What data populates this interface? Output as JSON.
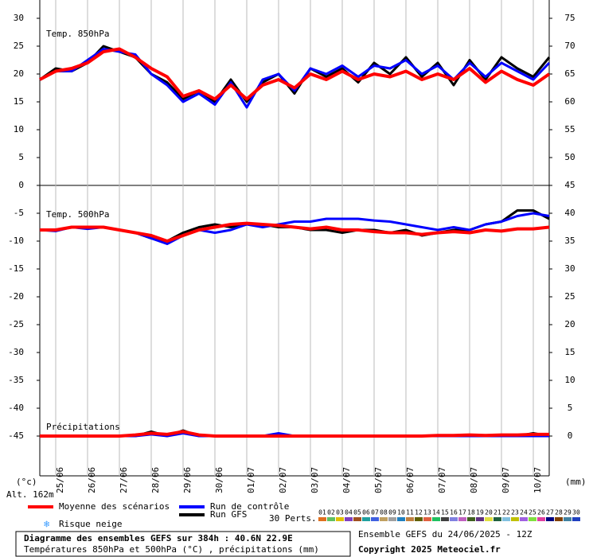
{
  "chart_data": {
    "type": "line",
    "x": [
      0,
      12,
      24,
      36,
      48,
      60,
      72,
      84,
      96,
      108,
      120,
      132,
      144,
      156,
      168,
      180,
      192,
      204,
      216,
      228,
      240,
      252,
      264,
      276,
      288,
      300,
      312,
      324,
      336,
      348,
      360,
      372,
      384
    ],
    "xlim": [
      0,
      384
    ],
    "xticks": [
      {
        "value": 12,
        "label": "25/06"
      },
      {
        "value": 36,
        "label": "26/06"
      },
      {
        "value": 60,
        "label": "27/06"
      },
      {
        "value": 84,
        "label": "28/06"
      },
      {
        "value": 108,
        "label": "29/06"
      },
      {
        "value": 132,
        "label": "30/06"
      },
      {
        "value": 156,
        "label": "01/07"
      },
      {
        "value": 180,
        "label": "02/07"
      },
      {
        "value": 204,
        "label": "03/07"
      },
      {
        "value": 228,
        "label": "04/07"
      },
      {
        "value": 252,
        "label": "05/07"
      },
      {
        "value": 276,
        "label": "06/07"
      },
      {
        "value": 300,
        "label": "07/07"
      },
      {
        "value": 324,
        "label": "08/07"
      },
      {
        "value": 348,
        "label": "09/07"
      },
      {
        "value": 372,
        "label": "10/07"
      }
    ],
    "ylim": [
      -52,
      33
    ],
    "yticks": [
      30,
      25,
      20,
      15,
      10,
      5,
      0,
      -5,
      -10,
      -15,
      -20,
      -25,
      -30,
      -35,
      -40,
      -45
    ],
    "y2lim": [
      -7,
      78
    ],
    "y2ticks": [
      75,
      70,
      65,
      60,
      55,
      50,
      45,
      40,
      35,
      30,
      25,
      20,
      15,
      10,
      5,
      0
    ],
    "grid": true,
    "ylabel": "(°c)",
    "y2label": "(mm)",
    "altitude": "Alt. 162m",
    "legend": [
      {
        "name": "Moyenne des scénarios",
        "color": "#ff0000",
        "width": 4
      },
      {
        "name": "Run de contrôle",
        "color": "#0000ff",
        "width": 3
      },
      {
        "name": "Run GFS",
        "color": "#000000",
        "width": 3
      }
    ],
    "snow": "Risque neige",
    "perturbations_title": "30 Perts.",
    "perturbations": [
      {
        "name": "01",
        "color": "#e07020"
      },
      {
        "name": "02",
        "color": "#60c060"
      },
      {
        "name": "03",
        "color": "#e0c000"
      },
      {
        "name": "04",
        "color": "#8040c0"
      },
      {
        "name": "05",
        "color": "#a05020"
      },
      {
        "name": "06",
        "color": "#20a0a0"
      },
      {
        "name": "07",
        "color": "#4060e0"
      },
      {
        "name": "08",
        "color": "#c0a060"
      },
      {
        "name": "09",
        "color": "#a0a0a0"
      },
      {
        "name": "10",
        "color": "#2080c0"
      },
      {
        "name": "11",
        "color": "#c08040"
      },
      {
        "name": "12",
        "color": "#606000"
      },
      {
        "name": "13",
        "color": "#e06040"
      },
      {
        "name": "14",
        "color": "#20c060"
      },
      {
        "name": "15",
        "color": "#404040"
      },
      {
        "name": "16",
        "color": "#8080e0"
      },
      {
        "name": "17",
        "color": "#c060c0"
      },
      {
        "name": "18",
        "color": "#406020"
      },
      {
        "name": "19",
        "color": "#603080"
      },
      {
        "name": "20",
        "color": "#e0e040"
      },
      {
        "name": "21",
        "color": "#206040"
      },
      {
        "name": "22",
        "color": "#80c0e0"
      },
      {
        "name": "23",
        "color": "#c0c000"
      },
      {
        "name": "24",
        "color": "#a060e0"
      },
      {
        "name": "25",
        "color": "#80e040"
      },
      {
        "name": "26",
        "color": "#e040a0"
      },
      {
        "name": "27",
        "color": "#000080"
      },
      {
        "name": "28",
        "color": "#804000"
      },
      {
        "name": "29",
        "color": "#4080a0"
      },
      {
        "name": "30",
        "color": "#2040c0"
      }
    ],
    "panels": [
      {
        "label": "Temp. 850hPa",
        "axis": "y",
        "values": [
          [
            19,
            20.5,
            21,
            22,
            24,
            24.5,
            23,
            21,
            19.5,
            16,
            17,
            15.5,
            18,
            15.5,
            18,
            19,
            17.5,
            20,
            19,
            20.5,
            19,
            20,
            19.5,
            20.5,
            19,
            20,
            19,
            21,
            18.5,
            20.5,
            19,
            18,
            20
          ],
          [
            19,
            20.5,
            20.5,
            22.5,
            24.5,
            24,
            23.5,
            20,
            18,
            15,
            16.5,
            14.5,
            18.5,
            14,
            19,
            20,
            17,
            21,
            20,
            21.5,
            19.5,
            21.5,
            21,
            22.5,
            20,
            21.5,
            19,
            22,
            19.5,
            22,
            20.5,
            19,
            22
          ],
          [
            19,
            21,
            20.5,
            22,
            25,
            24,
            23,
            20,
            18.5,
            15.5,
            17,
            15,
            19,
            15,
            18.5,
            20,
            16.5,
            21,
            19.5,
            21,
            18.5,
            22,
            20,
            23,
            19.5,
            22,
            18,
            22.5,
            19,
            23,
            21,
            19.5,
            23
          ]
        ]
      },
      {
        "label": "Temp. 500hPa",
        "axis": "y",
        "values": [
          [
            -8,
            -8,
            -7.5,
            -7.5,
            -7.5,
            -8,
            -8.5,
            -9,
            -10,
            -9,
            -8,
            -7.5,
            -7,
            -6.8,
            -7,
            -7.2,
            -7.5,
            -7.8,
            -7.5,
            -8,
            -8,
            -8.3,
            -8.5,
            -8.5,
            -8.8,
            -8.5,
            -8.3,
            -8.5,
            -8,
            -8.2,
            -7.8,
            -7.8,
            -7.5
          ],
          [
            -8,
            -8.2,
            -7.5,
            -7.8,
            -7.5,
            -8,
            -8.5,
            -9.5,
            -10.5,
            -9,
            -8,
            -8.5,
            -8,
            -7,
            -7.5,
            -7,
            -6.5,
            -6.5,
            -6,
            -6,
            -6,
            -6.3,
            -6.5,
            -7,
            -7.5,
            -8,
            -7.5,
            -8,
            -7,
            -6.5,
            -5.5,
            -5,
            -5.5
          ],
          [
            -8,
            -8,
            -7.5,
            -7.5,
            -7.5,
            -8,
            -8.5,
            -9.5,
            -10,
            -8.5,
            -7.5,
            -7,
            -7.5,
            -7,
            -7,
            -7.5,
            -7.5,
            -8,
            -8,
            -8.5,
            -8,
            -8,
            -8.5,
            -8,
            -9,
            -8.5,
            -8,
            -8,
            -7,
            -6.5,
            -4.5,
            -4.5,
            -6
          ]
        ]
      },
      {
        "label": "Précipitations",
        "axis": "y2",
        "values": [
          [
            0,
            0,
            0,
            0,
            0,
            0,
            0.2,
            0.5,
            0.3,
            0.8,
            0.2,
            0,
            0,
            0,
            0,
            0,
            0,
            0,
            0,
            0,
            0,
            0,
            0,
            0,
            0,
            0.1,
            0.1,
            0.2,
            0.1,
            0.2,
            0.2,
            0.3,
            0.3
          ],
          [
            0,
            0,
            0,
            0,
            0,
            0,
            0,
            0.3,
            0,
            0.5,
            0,
            0,
            0,
            0,
            0,
            0.5,
            0,
            0,
            0,
            0,
            0,
            0,
            0,
            0,
            0,
            0,
            0,
            0,
            0,
            0,
            0,
            0,
            0
          ],
          [
            0,
            0,
            0,
            0,
            0,
            0,
            0,
            0.8,
            0,
            1,
            0,
            0,
            0,
            0,
            0,
            0,
            0,
            0,
            0,
            0,
            0,
            0,
            0,
            0,
            0,
            0,
            0,
            0,
            0,
            0,
            0,
            0.5,
            0
          ]
        ]
      }
    ],
    "footer": {
      "title": "Diagramme des ensembles GEFS sur 384h : 40.6N 22.9E",
      "subtitle": "Températures 850hPa et 500hPa (°C) , précipitations (mm)",
      "run": "Ensemble GEFS du 24/06/2025 - 12Z",
      "copyright": "Copyright 2025 Meteociel.fr"
    }
  }
}
